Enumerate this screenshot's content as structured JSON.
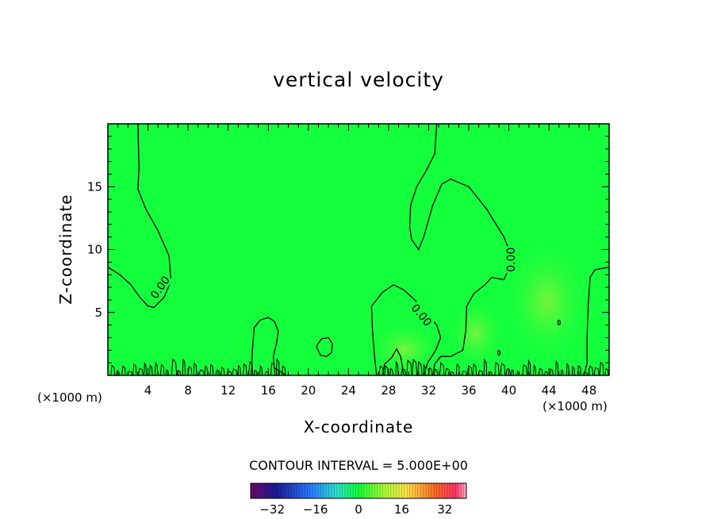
{
  "chart_data": {
    "type": "heatmap",
    "title": "vertical velocity",
    "xlabel": "X-coordinate",
    "ylabel": "Z-coordinate",
    "x_unit_label": "(×1000 m)",
    "x_unit_label_right": "(×1000 m)",
    "xlim": [
      0,
      50
    ],
    "ylim": [
      0,
      20
    ],
    "x_ticks": [
      4,
      8,
      12,
      16,
      20,
      24,
      28,
      32,
      36,
      40,
      44,
      48
    ],
    "y_ticks": [
      5,
      10,
      15
    ],
    "background_value": 0,
    "contour_label": "0.00",
    "contour_interval_text": "CONTOUR INTERVAL = 5.000E+00",
    "colorbar": {
      "min": -40,
      "max": 40,
      "ticks": [
        -32,
        -16,
        0,
        16,
        32
      ]
    },
    "contours": [
      [
        [
          3.0,
          20
        ],
        [
          3.1,
          16.5
        ],
        [
          3.0,
          14.8
        ],
        [
          3.8,
          13.2
        ],
        [
          5.0,
          11.5
        ],
        [
          6.1,
          9.5
        ],
        [
          6.3,
          7.5
        ],
        [
          5.6,
          6.2
        ],
        [
          4.6,
          5.4
        ],
        [
          4.0,
          5.5
        ],
        [
          3.2,
          6.2
        ],
        [
          2.3,
          7.2
        ],
        [
          1.2,
          8.0
        ],
        [
          0,
          8.6
        ]
      ],
      [
        [
          32.8,
          20
        ],
        [
          32.6,
          17.6
        ],
        [
          31.7,
          16.2
        ],
        [
          30.8,
          15.0
        ],
        [
          30.2,
          13.5
        ],
        [
          30.1,
          11.8
        ],
        [
          30.3,
          10.8
        ],
        [
          31.0,
          10.0
        ],
        [
          31.5,
          11.0
        ],
        [
          32.4,
          13.5
        ],
        [
          33.3,
          15.2
        ],
        [
          34.2,
          15.6
        ],
        [
          36.0,
          15.0
        ],
        [
          37.8,
          13.2
        ],
        [
          39.5,
          11.0
        ],
        [
          40.1,
          9.8
        ],
        [
          40.0,
          8.5
        ],
        [
          39.5,
          7.6
        ],
        [
          38.3,
          7.8
        ],
        [
          37.6,
          7.2
        ],
        [
          36.5,
          6.5
        ],
        [
          35.8,
          5.5
        ],
        [
          35.7,
          3.5
        ],
        [
          35.4,
          2.0
        ],
        [
          34.2,
          1.5
        ],
        [
          33.2,
          1.5
        ],
        [
          32.6,
          0.9
        ],
        [
          32.4,
          0
        ]
      ],
      [
        [
          50,
          8.6
        ],
        [
          48.6,
          8.4
        ],
        [
          48.1,
          7.8
        ],
        [
          47.9,
          5.5
        ],
        [
          47.8,
          3.0
        ],
        [
          47.8,
          1.0
        ],
        [
          47.5,
          0
        ]
      ],
      [
        [
          14.3,
          0
        ],
        [
          14.4,
          1.8
        ],
        [
          14.6,
          3.8
        ],
        [
          15.2,
          4.4
        ],
        [
          16.0,
          4.6
        ],
        [
          16.6,
          4.3
        ],
        [
          17.0,
          3.5
        ],
        [
          16.8,
          2.5
        ],
        [
          16.5,
          1.5
        ],
        [
          16.6,
          0.6
        ],
        [
          17.2,
          0.3
        ],
        [
          17.8,
          0
        ]
      ],
      [
        [
          20.8,
          2.3
        ],
        [
          21.3,
          2.9
        ],
        [
          22.0,
          3.0
        ],
        [
          22.4,
          2.5
        ],
        [
          22.3,
          1.8
        ],
        [
          21.8,
          1.5
        ],
        [
          21.2,
          1.6
        ],
        [
          20.8,
          2.3
        ]
      ],
      [
        [
          26.8,
          0
        ],
        [
          26.6,
          1.5
        ],
        [
          26.4,
          3.5
        ],
        [
          26.3,
          5.5
        ],
        [
          27.4,
          6.6
        ],
        [
          28.5,
          7.2
        ],
        [
          29.5,
          6.8
        ],
        [
          30.6,
          6.0
        ],
        [
          31.8,
          5.0
        ],
        [
          32.8,
          4.0
        ],
        [
          33.2,
          3.0
        ],
        [
          32.7,
          2.0
        ],
        [
          31.9,
          1.0
        ],
        [
          31.5,
          0
        ]
      ],
      [
        [
          27.4,
          0
        ],
        [
          27.6,
          0.9
        ],
        [
          28.3,
          1.4
        ],
        [
          28.8,
          2.1
        ],
        [
          29.2,
          1.5
        ],
        [
          29.4,
          0.6
        ],
        [
          29.5,
          0
        ]
      ]
    ],
    "contour_labels": [
      {
        "x": 5.2,
        "y": 7.0,
        "angle": -55
      },
      {
        "x": 31.3,
        "y": 4.8,
        "angle": 50
      },
      {
        "x": 40.2,
        "y": 9.2,
        "angle": -90
      }
    ],
    "closed_marks": [
      {
        "x": 39.0,
        "y": 1.8
      },
      {
        "x": 45.0,
        "y": 4.2
      }
    ]
  }
}
